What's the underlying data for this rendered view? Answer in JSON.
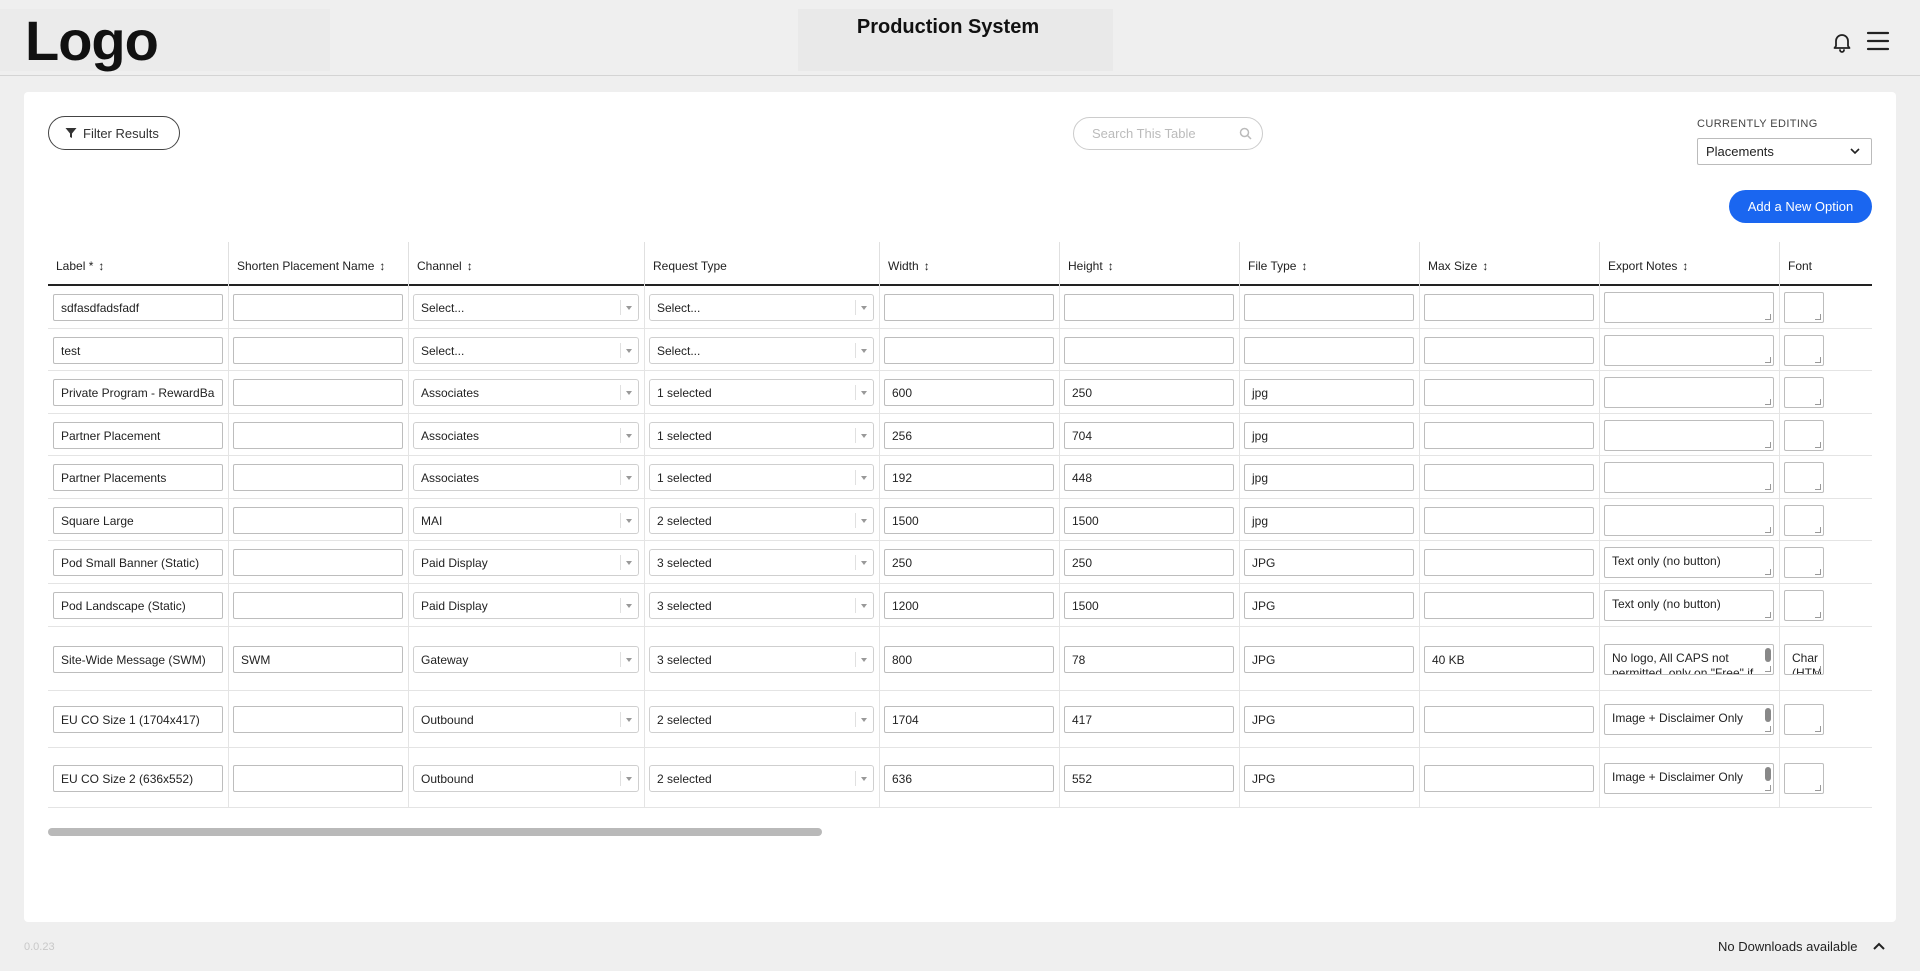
{
  "header": {
    "logo": "Logo",
    "title": "Production System",
    "icons": [
      "bell-icon",
      "hamburger-menu-icon"
    ]
  },
  "toolbar": {
    "filter_label": "Filter Results",
    "search_placeholder": "Search This Table",
    "currently_editing_label": "CURRENTLY EDITING",
    "currently_editing_value": "Placements",
    "add_button_label": "Add a New Option"
  },
  "table": {
    "columns": [
      {
        "label": "Label *",
        "sortable": true
      },
      {
        "label": "Shorten Placement Name",
        "sortable": true
      },
      {
        "label": "Channel",
        "sortable": true
      },
      {
        "label": "Request Type",
        "sortable": false
      },
      {
        "label": "Width",
        "sortable": true
      },
      {
        "label": "Height",
        "sortable": true
      },
      {
        "label": "File Type",
        "sortable": true
      },
      {
        "label": "Max Size",
        "sortable": true
      },
      {
        "label": "Export Notes",
        "sortable": true
      },
      {
        "label": "Font",
        "sortable": false
      }
    ],
    "rows": [
      {
        "label": "sdfasdfadsfadf",
        "short_name": "",
        "channel": "Select...",
        "request_type": "Select...",
        "width": "",
        "height": "",
        "file_type": "",
        "max_size": "",
        "export_notes": "",
        "font": ""
      },
      {
        "label": "test",
        "short_name": "",
        "channel": "Select...",
        "request_type": "Select...",
        "width": "",
        "height": "",
        "file_type": "",
        "max_size": "",
        "export_notes": "",
        "font": ""
      },
      {
        "label": "Private Program - RewardBa",
        "short_name": "",
        "channel": "Associates",
        "request_type": "1 selected",
        "width": "600",
        "height": "250",
        "file_type": "jpg",
        "max_size": "",
        "export_notes": "",
        "font": ""
      },
      {
        "label": "Partner Placement",
        "short_name": "",
        "channel": "Associates",
        "request_type": "1 selected",
        "width": "256",
        "height": "704",
        "file_type": "jpg",
        "max_size": "",
        "export_notes": "",
        "font": ""
      },
      {
        "label": "Partner Placements",
        "short_name": "",
        "channel": "Associates",
        "request_type": "1 selected",
        "width": "192",
        "height": "448",
        "file_type": "jpg",
        "max_size": "",
        "export_notes": "",
        "font": ""
      },
      {
        "label": "Square Large",
        "short_name": "",
        "channel": "MAI",
        "request_type": "2 selected",
        "width": "1500",
        "height": "1500",
        "file_type": "jpg",
        "max_size": "",
        "export_notes": "",
        "font": ""
      },
      {
        "label": "Pod Small Banner (Static)",
        "short_name": "",
        "channel": "Paid Display",
        "request_type": "3 selected",
        "width": "250",
        "height": "250",
        "file_type": "JPG",
        "max_size": "",
        "export_notes": "Text only (no button)",
        "font": ""
      },
      {
        "label": " Pod Landscape (Static)",
        "short_name": "",
        "channel": "Paid Display",
        "request_type": "3 selected",
        "width": "1200",
        "height": "1500",
        "file_type": "JPG",
        "max_size": "",
        "export_notes": "Text only (no button)",
        "font": ""
      },
      {
        "label": "Site-Wide Message (SWM)",
        "short_name": "SWM",
        "channel": "Gateway",
        "request_type": "3 selected",
        "width": "800",
        "height": "78",
        "file_type": "JPG",
        "max_size": "40 KB",
        "export_notes": "No logo, All CAPS not permitted, only on \"Free\" if copy matrix shows",
        "font": "Char (HTM"
      },
      {
        "label": "EU CO Size 1 (1704x417)",
        "short_name": "",
        "channel": "Outbound",
        "request_type": "2 selected",
        "width": "1704",
        "height": "417",
        "file_type": "JPG",
        "max_size": "",
        "export_notes": "Image + Disclaimer Only",
        "font": ""
      },
      {
        "label": "EU CO Size 2 (636x552)",
        "short_name": "",
        "channel": "Outbound",
        "request_type": "2 selected",
        "width": "636",
        "height": "552",
        "file_type": "JPG",
        "max_size": "",
        "export_notes": "Image + Disclaimer Only",
        "font": ""
      }
    ]
  },
  "footer": {
    "version": "0.0.23",
    "downloads_label": "No Downloads available"
  }
}
